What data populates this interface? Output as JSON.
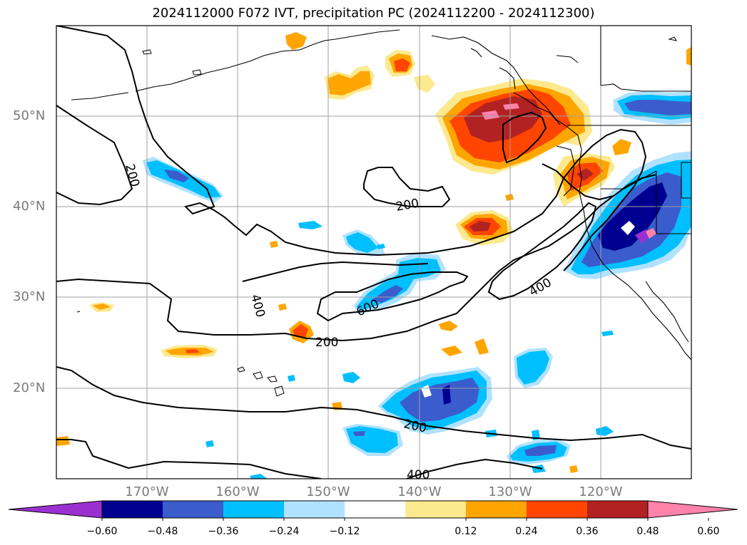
{
  "title": "2024112000 F072 IVT, precipitation PC (2024112200 - 2024112300)",
  "lat_labels": [
    "50°N",
    "40°N",
    "30°N",
    "20°N"
  ],
  "lon_labels": [
    "170°W",
    "160°W",
    "150°W",
    "140°W",
    "130°W",
    "120°W"
  ],
  "contour_labels": [
    "200",
    "200",
    "400",
    "600",
    "200",
    "400",
    "200",
    "400"
  ],
  "colorbar": {
    "ticks": [
      "−0.60",
      "−0.48",
      "−0.36",
      "−0.24",
      "−0.12",
      "0.12",
      "0.24",
      "0.36",
      "0.48",
      "0.60"
    ],
    "colors": [
      "#9b30d0",
      "#000090",
      "#3a5ccc",
      "#00bfff",
      "#b0e2ff",
      "#ffffff",
      "#fde98e",
      "#ffa500",
      "#ff4500",
      "#b22222",
      "#ff82ab"
    ]
  }
}
